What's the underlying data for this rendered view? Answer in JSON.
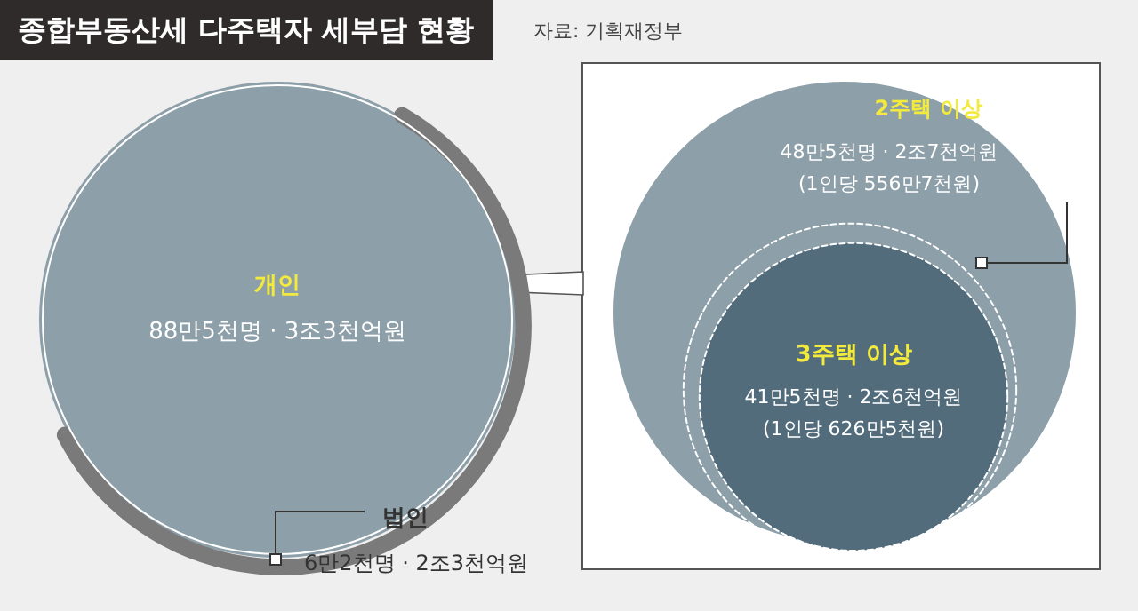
{
  "chart_data": {
    "type": "other",
    "title": "종합부동산세 다주택자 세부담 현황",
    "annotations": [
      "자료: 기획재정부"
    ],
    "categories": [
      "개인",
      "법인",
      "2주택 이상",
      "3주택 이상"
    ],
    "values": [
      88.5,
      6.2,
      48.5,
      41.5
    ],
    "value_labels": [
      "88만5천명 · 3조3천억원",
      "6만2천명 · 2조3천억원",
      "48만5천명 · 2조7천억원\n(1인당 556만7천원)",
      "41만5천명 · 2조6천억원\n(1인당 626만5천원)"
    ],
    "colors": [
      "#8d9fa9",
      "#7a7a7a",
      "#8d9fa9",
      "#526c7b"
    ]
  }
}
